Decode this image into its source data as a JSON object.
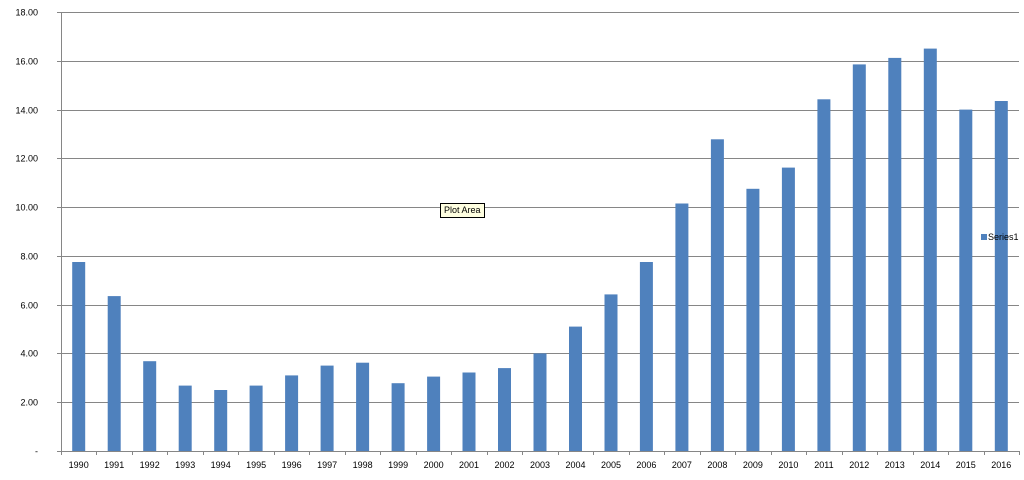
{
  "chart_data": {
    "type": "bar",
    "categories": [
      "1990",
      "1991",
      "1992",
      "1993",
      "1994",
      "1995",
      "1996",
      "1997",
      "1998",
      "1999",
      "2000",
      "2001",
      "2002",
      "2003",
      "2004",
      "2005",
      "2006",
      "2007",
      "2008",
      "2009",
      "2010",
      "2011",
      "2012",
      "2013",
      "2014",
      "2015",
      "2016"
    ],
    "series": [
      {
        "name": "Series1",
        "values": [
          7.75,
          6.35,
          3.68,
          2.68,
          2.5,
          2.68,
          3.1,
          3.5,
          3.62,
          2.78,
          3.05,
          3.22,
          3.4,
          4.0,
          5.1,
          6.42,
          7.75,
          10.15,
          12.78,
          10.75,
          11.62,
          14.42,
          15.85,
          16.12,
          16.5,
          14.0,
          14.35
        ]
      }
    ],
    "y_tick_labels": [
      "-",
      "2.00",
      "4.00",
      "6.00",
      "8.00",
      "10.00",
      "12.00",
      "14.00",
      "16.00",
      "18.00"
    ],
    "ylim": [
      0,
      18
    ],
    "y_tick_step": 2,
    "title": "",
    "xlabel": "",
    "ylabel": "",
    "grid": true,
    "legend_position": "right",
    "bar_color": "#4f81bd",
    "tooltip_text": "Plot Area"
  }
}
